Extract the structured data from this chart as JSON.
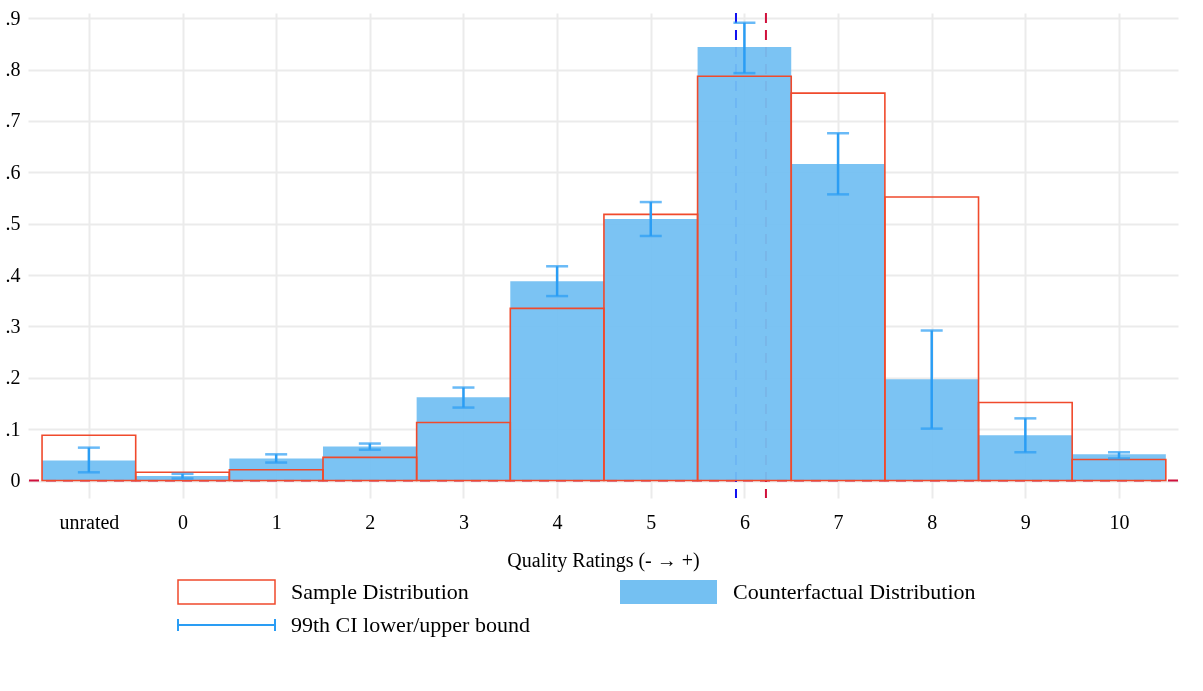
{
  "chart_data": {
    "type": "bar",
    "xlabel": "Quality Ratings (- → +)",
    "x": [
      -1,
      0,
      1,
      2,
      3,
      4,
      5,
      6,
      7,
      8,
      9,
      10
    ],
    "xlim": [
      -1.65,
      10.63
    ],
    "xticks": [
      {
        "value": -1,
        "label": "unrated"
      },
      0,
      1,
      2,
      3,
      4,
      5,
      6,
      7,
      8,
      9,
      10
    ],
    "ylim": [
      -0.034,
      0.91
    ],
    "yticks": [
      0,
      {
        "value": 0.1,
        "label": ".1"
      },
      {
        "value": 0.2,
        "label": ".2"
      },
      {
        "value": 0.3,
        "label": ".3"
      },
      {
        "value": 0.4,
        "label": ".4"
      },
      {
        "value": 0.5,
        "label": ".5"
      },
      {
        "value": 0.6,
        "label": ".6"
      },
      {
        "value": 0.7,
        "label": ".7"
      },
      {
        "value": 0.8,
        "label": ".8"
      },
      {
        "value": 0.9,
        "label": ".9"
      }
    ],
    "series": [
      {
        "name": "Sample Distribution",
        "color": "#f04a2c",
        "values": [
          0.088,
          0.016,
          0.021,
          0.045,
          0.113,
          0.335,
          0.518,
          0.787,
          0.754,
          0.552,
          0.152,
          0.041
        ]
      },
      {
        "name": "Counterfactual Distribution",
        "color": "#74c0f2",
        "values": [
          0.039,
          0.009,
          0.043,
          0.066,
          0.162,
          0.388,
          0.509,
          0.844,
          0.616,
          0.197,
          0.088,
          0.051
        ],
        "errors": [
          [
            0.016,
            0.064
          ],
          [
            0.004,
            0.013
          ],
          [
            0.035,
            0.051
          ],
          [
            0.06,
            0.072
          ],
          [
            0.142,
            0.181
          ],
          [
            0.359,
            0.417
          ],
          [
            0.476,
            0.542
          ],
          [
            0.793,
            0.891
          ],
          [
            0.557,
            0.676
          ],
          [
            0.101,
            0.292
          ],
          [
            0.055,
            0.121
          ],
          [
            0.043,
            0.055
          ]
        ]
      }
    ],
    "ref_lines": [
      {
        "axis": "y",
        "value": 0,
        "color": "#d0103c",
        "line_style": "dashed"
      },
      {
        "axis": "x",
        "value": 5.91,
        "color": "#1010f0",
        "line_style": "dashed"
      },
      {
        "axis": "x",
        "value": 6.23,
        "color": "#d0103c",
        "line_style": "dashed"
      }
    ],
    "annotations": [
      "99th CI lower/upper bound"
    ],
    "grid": true,
    "legend": "bottom"
  }
}
